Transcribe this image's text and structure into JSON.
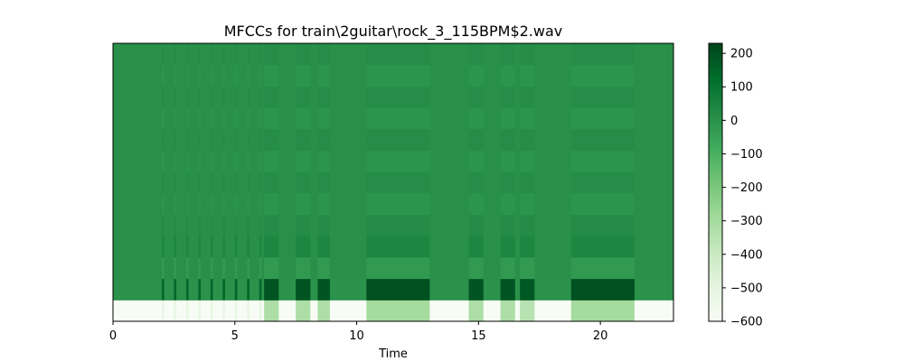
{
  "chart_data": {
    "type": "heatmap",
    "title": "MFCCs for train\\2guitar\\rock_3_115BPM$2.wav",
    "xlabel": "Time",
    "ylabel": "",
    "xlim": [
      0,
      23
    ],
    "x_ticks": [
      0,
      5,
      10,
      15,
      20
    ],
    "x_tick_labels": [
      "0",
      "5",
      "10",
      "15",
      "20"
    ],
    "n_coefficients": 13,
    "colormap": "Greens",
    "colorbar": {
      "range": [
        -600,
        230
      ],
      "ticks": [
        200,
        100,
        0,
        -100,
        -200,
        -300,
        -400,
        -500,
        -600
      ],
      "tick_labels": [
        "200",
        "100",
        "0",
        "−100",
        "−200",
        "−300",
        "−400",
        "−500",
        "−600"
      ]
    },
    "baseline_values": {
      "coef_0": -600,
      "coef_1": 0,
      "coef_2_to_12": 5
    },
    "active_segments": [
      {
        "start": 2.0,
        "end": 2.1,
        "coef_0": -520,
        "coef_1": 140
      },
      {
        "start": 2.5,
        "end": 2.6,
        "coef_0": -520,
        "coef_1": 140
      },
      {
        "start": 3.0,
        "end": 3.1,
        "coef_0": -520,
        "coef_1": 140
      },
      {
        "start": 3.5,
        "end": 3.6,
        "coef_0": -520,
        "coef_1": 140
      },
      {
        "start": 4.0,
        "end": 4.1,
        "coef_0": -520,
        "coef_1": 140
      },
      {
        "start": 4.5,
        "end": 4.6,
        "coef_0": -520,
        "coef_1": 140
      },
      {
        "start": 5.0,
        "end": 5.1,
        "coef_0": -520,
        "coef_1": 140
      },
      {
        "start": 5.5,
        "end": 5.6,
        "coef_0": -520,
        "coef_1": 140
      },
      {
        "start": 6.0,
        "end": 6.1,
        "coef_0": -520,
        "coef_1": 140
      },
      {
        "start": 6.2,
        "end": 6.8,
        "coef_0": -320,
        "coef_1": 190
      },
      {
        "start": 7.5,
        "end": 8.1,
        "coef_0": -320,
        "coef_1": 190
      },
      {
        "start": 8.4,
        "end": 8.9,
        "coef_0": -320,
        "coef_1": 190
      },
      {
        "start": 10.4,
        "end": 13.0,
        "coef_0": -300,
        "coef_1": 200
      },
      {
        "start": 14.6,
        "end": 15.2,
        "coef_0": -320,
        "coef_1": 190
      },
      {
        "start": 15.9,
        "end": 16.5,
        "coef_0": -320,
        "coef_1": 190
      },
      {
        "start": 16.7,
        "end": 17.3,
        "coef_0": -350,
        "coef_1": 180
      },
      {
        "start": 18.8,
        "end": 21.4,
        "coef_0": -300,
        "coef_1": 200
      }
    ]
  }
}
